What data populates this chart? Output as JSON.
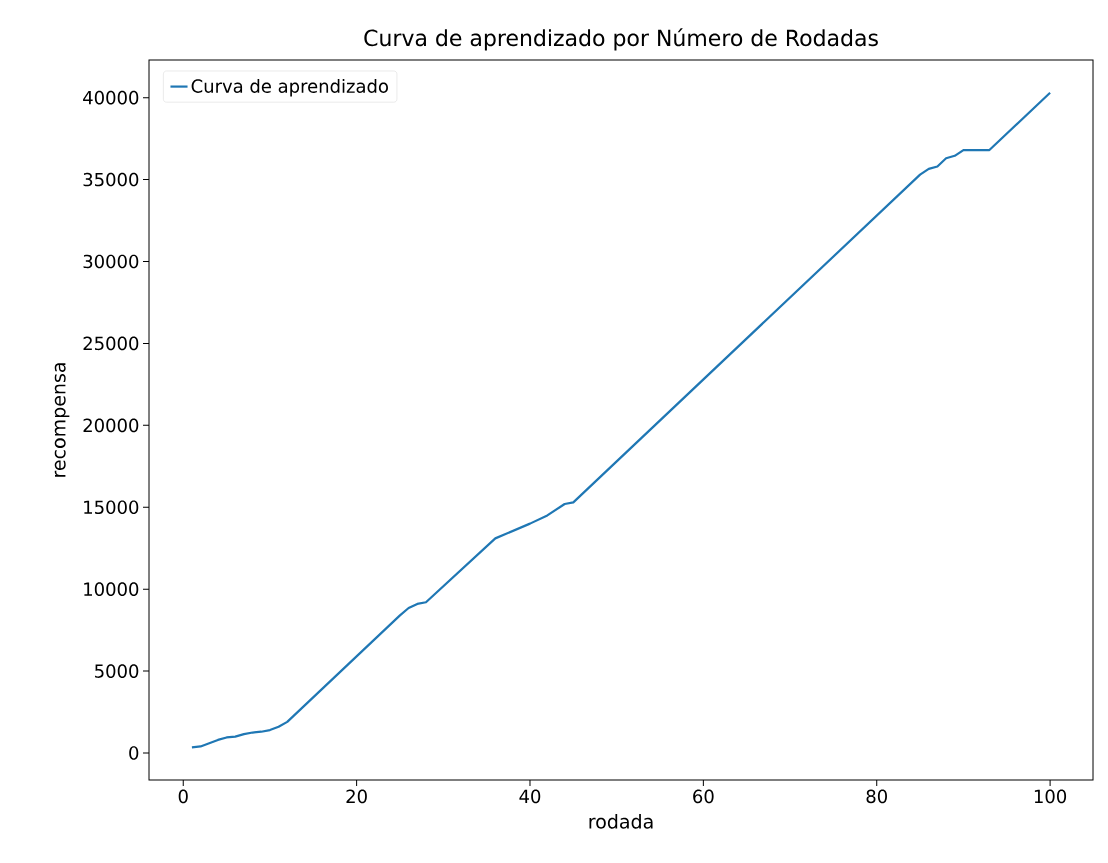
{
  "chart_data": {
    "type": "line",
    "title": "Curva de aprendizado por Número de Rodadas",
    "xlabel": "rodada",
    "ylabel": "recompensa",
    "x": [
      1,
      2,
      3,
      4,
      5,
      6,
      7,
      8,
      9,
      10,
      11,
      12,
      25,
      26,
      27,
      28,
      36,
      40,
      42,
      44,
      45,
      85,
      86,
      87,
      88,
      89,
      90,
      93,
      100
    ],
    "series": [
      {
        "name": "Curva de aprendizado",
        "color": "#1f77b4",
        "values": [
          350,
          400,
          600,
          800,
          950,
          1000,
          1150,
          1250,
          1300,
          1400,
          1600,
          1900,
          8400,
          8850,
          9100,
          9200,
          13100,
          14000,
          14500,
          15200,
          15300,
          35300,
          35650,
          35800,
          36300,
          36450,
          36800,
          36800,
          40300
        ]
      }
    ],
    "xlim": [
      -3.95,
      104.95
    ],
    "ylim": [
      -1647,
      42297
    ],
    "xticks": [
      0,
      20,
      40,
      60,
      80,
      100
    ],
    "yticks": [
      0,
      5000,
      10000,
      15000,
      20000,
      25000,
      30000,
      35000,
      40000
    ],
    "legend": "top left",
    "grid": false
  }
}
